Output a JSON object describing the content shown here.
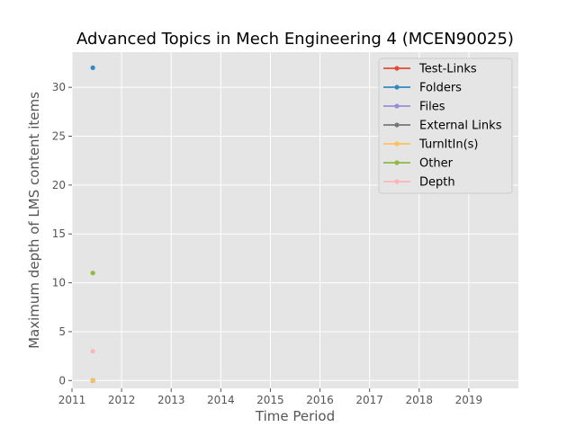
{
  "chart_data": {
    "type": "scatter",
    "title": "Advanced Topics in Mech Engineering 4 (MCEN90025)",
    "xlabel": "Time Period",
    "ylabel": "Maximum depth of LMS content items",
    "xlim": [
      2011,
      2020
    ],
    "ylim": [
      -0.8,
      33.6
    ],
    "x_ticks": [
      "2011",
      "2012",
      "2013",
      "2014",
      "2015",
      "2016",
      "2017",
      "2018",
      "2019"
    ],
    "y_ticks": [
      "0",
      "5",
      "10",
      "15",
      "20",
      "25",
      "30"
    ],
    "grid": true,
    "legend_position": "top-right",
    "series": [
      {
        "name": "Test-Links",
        "color": "#E24A33",
        "points": [
          [
            2011.42,
            0
          ]
        ]
      },
      {
        "name": "Folders",
        "color": "#348ABD",
        "points": [
          [
            2011.42,
            32
          ]
        ]
      },
      {
        "name": "Files",
        "color": "#988ED5",
        "points": [
          [
            2011.42,
            0
          ]
        ]
      },
      {
        "name": "External Links",
        "color": "#777777",
        "points": [
          [
            2011.42,
            0
          ]
        ]
      },
      {
        "name": "TurnItIn(s)",
        "color": "#FBC15E",
        "points": [
          [
            2011.42,
            0
          ]
        ]
      },
      {
        "name": "Other",
        "color": "#8EBA42",
        "points": [
          [
            2011.42,
            11
          ]
        ]
      },
      {
        "name": "Depth",
        "color": "#FFB5B8",
        "points": [
          [
            2011.42,
            3
          ]
        ]
      }
    ]
  }
}
